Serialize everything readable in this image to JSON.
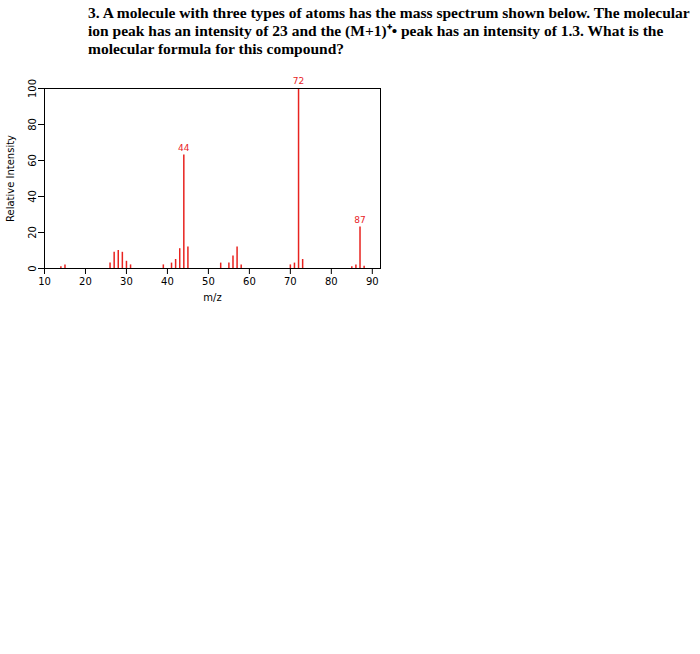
{
  "chart_data": {
    "type": "bar",
    "title": "3. A molecule with three types of atoms has the mass spectrum shown below. The molecular ion peak has an intensity of 23 and the (M+1)⁺• peak has an intensity of 1.3. What is the molecular formula for this compound?",
    "x_label": "m/z",
    "y_label": "Relative Intensity",
    "x": [
      14,
      15,
      26,
      27,
      28,
      29,
      30,
      31,
      39,
      41,
      42,
      43,
      44,
      45,
      53,
      55,
      56,
      57,
      58,
      70,
      71,
      72,
      73,
      85,
      86,
      87,
      88
    ],
    "values": [
      1,
      2,
      3,
      9,
      10,
      9,
      4,
      2,
      2,
      3,
      5,
      11,
      63,
      12,
      3,
      3,
      7,
      12,
      2,
      2,
      3,
      100,
      5,
      1,
      2,
      23,
      1.3
    ],
    "color": "#e8231f",
    "annotations": [
      {
        "x": 44,
        "text": "44"
      },
      {
        "x": 72,
        "text": "72"
      },
      {
        "x": 87,
        "text": "87"
      }
    ],
    "xlim": [
      10,
      92
    ],
    "xticks": [
      10,
      20,
      30,
      40,
      50,
      60,
      70,
      80,
      90
    ],
    "ylim": [
      0,
      100
    ],
    "yticks": [
      0,
      20,
      40,
      60,
      80,
      100
    ],
    "grid": false
  }
}
